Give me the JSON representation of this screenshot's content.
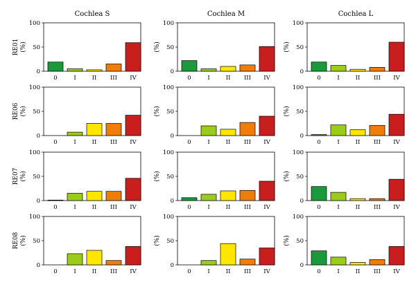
{
  "chart_data": {
    "type": "bar",
    "layout": "grid",
    "columns": [
      "Cochlea S",
      "Cochlea M",
      "Cochlea L"
    ],
    "rows": [
      "RE01",
      "RE06",
      "RE07",
      "RE08"
    ],
    "ylabel": "(%)",
    "categories": [
      "0",
      "I",
      "II",
      "III",
      "IV"
    ],
    "ylim": [
      0,
      100
    ],
    "yticks": [
      0,
      50,
      100
    ],
    "colors": [
      "#1a9a3a",
      "#9ccc1a",
      "#ffe600",
      "#f07d0a",
      "#c81e1e"
    ],
    "panels": [
      {
        "row": "RE01",
        "column": "Cochlea S",
        "values": [
          19,
          5,
          3,
          15,
          59
        ]
      },
      {
        "row": "RE01",
        "column": "Cochlea M",
        "values": [
          22,
          5,
          10,
          13,
          51
        ]
      },
      {
        "row": "RE01",
        "column": "Cochlea L",
        "values": [
          19,
          12,
          4,
          8,
          60
        ]
      },
      {
        "row": "RE06",
        "column": "Cochlea S",
        "values": [
          0,
          7,
          25,
          25,
          42
        ]
      },
      {
        "row": "RE06",
        "column": "Cochlea M",
        "values": [
          0,
          20,
          13,
          27,
          40
        ]
      },
      {
        "row": "RE06",
        "column": "Cochlea L",
        "values": [
          2,
          22,
          12,
          21,
          44
        ]
      },
      {
        "row": "RE07",
        "column": "Cochlea S",
        "values": [
          1,
          15,
          19,
          19,
          46
        ]
      },
      {
        "row": "RE07",
        "column": "Cochlea M",
        "values": [
          6,
          13,
          20,
          21,
          40
        ]
      },
      {
        "row": "RE07",
        "column": "Cochlea L",
        "values": [
          29,
          17,
          4,
          4,
          44
        ]
      },
      {
        "row": "RE08",
        "column": "Cochlea S",
        "values": [
          0,
          23,
          30,
          9,
          38
        ]
      },
      {
        "row": "RE08",
        "column": "Cochlea M",
        "values": [
          0,
          9,
          44,
          12,
          35
        ]
      },
      {
        "row": "RE08",
        "column": "Cochlea L",
        "values": [
          29,
          16,
          5,
          11,
          38
        ]
      }
    ]
  }
}
